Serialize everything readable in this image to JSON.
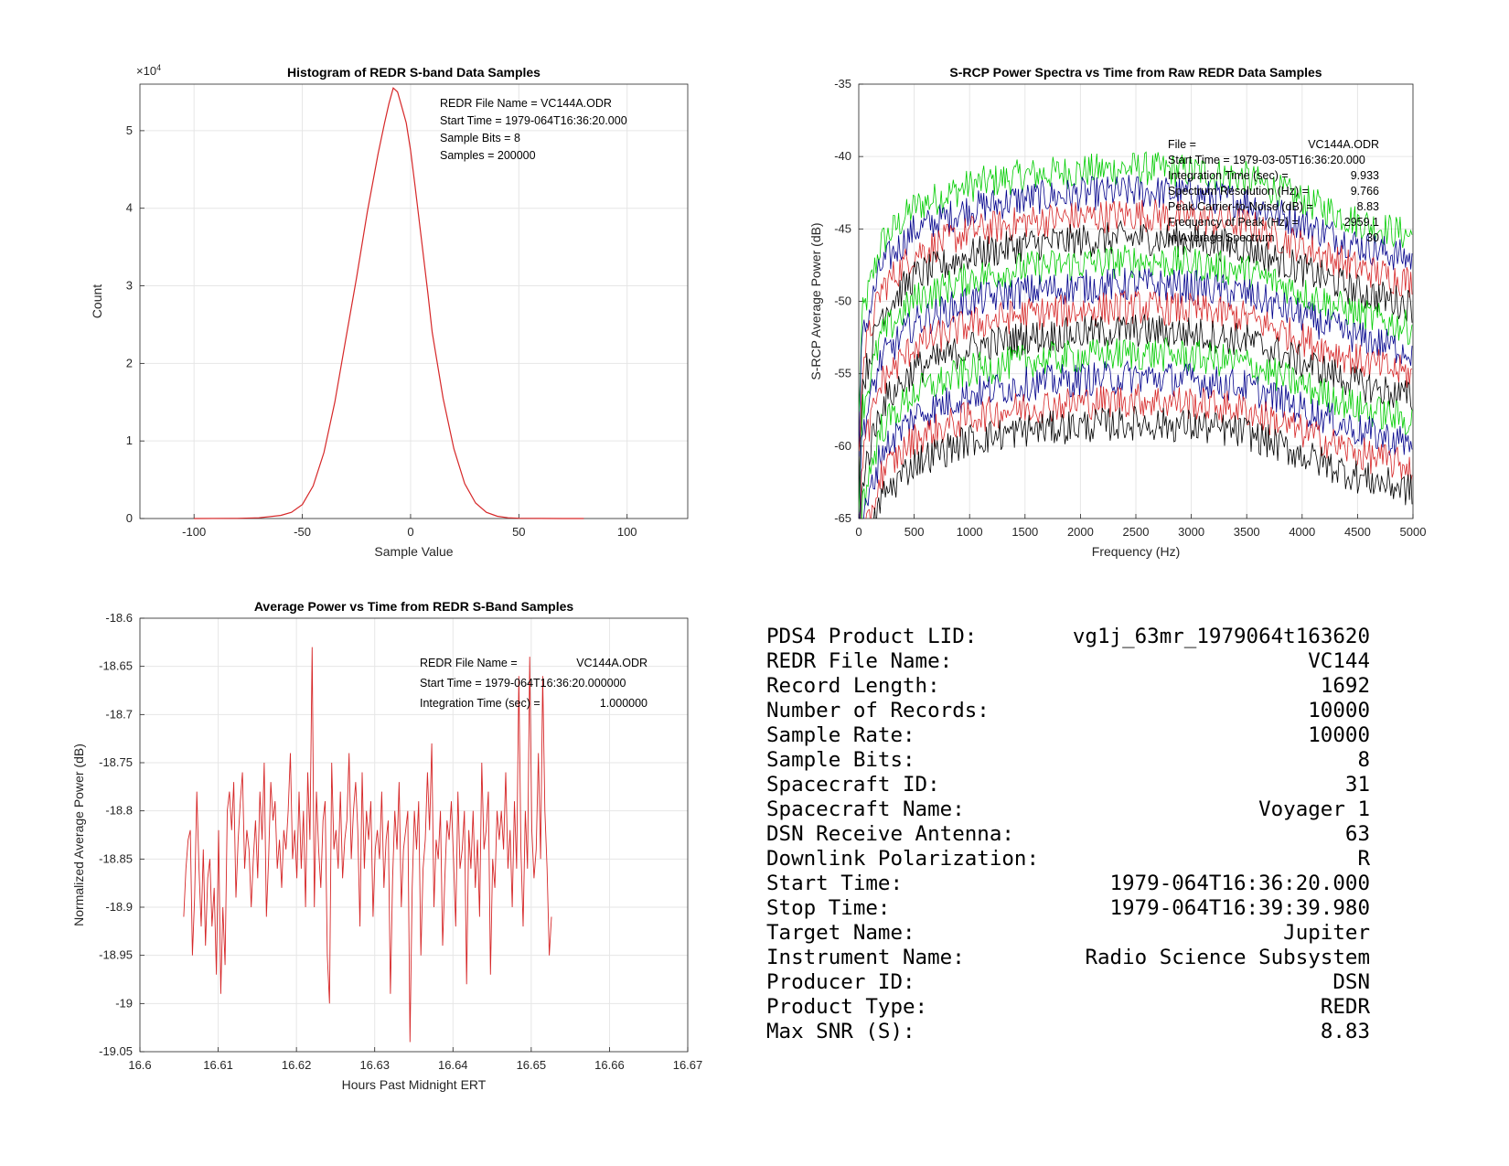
{
  "chart_data": [
    {
      "type": "line",
      "id": "histogram",
      "title": "Histogram of REDR S-band Data Samples",
      "xlabel": "Sample Value",
      "ylabel": "Count",
      "y_exponent_label": "×10",
      "y_exponent": "4",
      "xlim": [
        -125,
        128
      ],
      "ylim": [
        0,
        5.6
      ],
      "xticks": [
        -100,
        -50,
        0,
        50,
        100
      ],
      "yticks": [
        0,
        1,
        2,
        3,
        4,
        5
      ],
      "grid": true,
      "series_color": "#d62728",
      "x": [
        -100,
        -80,
        -70,
        -60,
        -55,
        -50,
        -45,
        -40,
        -35,
        -30,
        -25,
        -20,
        -15,
        -12,
        -10,
        -8,
        -6,
        -4,
        -2,
        0,
        2,
        5,
        8,
        10,
        15,
        20,
        25,
        30,
        35,
        40,
        45,
        50,
        60,
        70,
        80
      ],
      "y": [
        0,
        0.002,
        0.01,
        0.04,
        0.08,
        0.18,
        0.42,
        0.85,
        1.5,
        2.3,
        3.1,
        3.95,
        4.7,
        5.1,
        5.35,
        5.55,
        5.5,
        5.3,
        5.1,
        4.75,
        4.3,
        3.6,
        2.9,
        2.4,
        1.55,
        0.9,
        0.45,
        0.2,
        0.08,
        0.03,
        0.01,
        0.004,
        0.001,
        0,
        0
      ],
      "annotations": [
        "REDR File Name = VC144A.ODR",
        "Start Time = 1979-064T16:36:20.000",
        "Sample Bits = 8",
        "Samples = 200000"
      ]
    },
    {
      "type": "line",
      "id": "spectra",
      "title": "S-RCP Power Spectra vs Time from Raw REDR Data Samples",
      "xlabel": "Frequency (Hz)",
      "ylabel": "S-RCP Average Power (dB)",
      "xlim": [
        0,
        5000
      ],
      "ylim": [
        -65,
        -35
      ],
      "xticks": [
        0,
        500,
        1000,
        1500,
        2000,
        2500,
        3000,
        3500,
        4000,
        4500,
        5000
      ],
      "yticks": [
        -65,
        -60,
        -55,
        -50,
        -45,
        -40,
        -35
      ],
      "grid": true,
      "series_colors": [
        "#00cc00",
        "#00008b",
        "#d62728",
        "#000000"
      ],
      "series_offsets_db": [
        0,
        -1.6,
        -3.2,
        -4.8,
        -6.4,
        -8.0,
        -9.6,
        -11.2,
        -12.8,
        -14.4,
        -16.0,
        -17.6
      ],
      "envelope_x": [
        0,
        200,
        500,
        1000,
        1500,
        2000,
        2500,
        3000,
        3500,
        4000,
        4500,
        5000
      ],
      "envelope_y": [
        -52,
        -46,
        -43.5,
        -42,
        -41.3,
        -41,
        -40.8,
        -41,
        -41.5,
        -43,
        -44.5,
        -45.5
      ],
      "annotations": [
        {
          "label": "File =",
          "value": "VC144A.ODR"
        },
        {
          "label": "Start Time = 1979-03-05T16:36:20.000",
          "value": ""
        },
        {
          "label": "Integration Time (sec) =",
          "value": "9.933"
        },
        {
          "label": "Spectrum Resolution (Hz) =",
          "value": "9.766"
        },
        {
          "label": "Peak Carrier-to-Noise (dB) =",
          "value": "8.83"
        },
        {
          "label": "Frequency of Peak (Hz) =",
          "value": "2959.1"
        },
        {
          "label": "In Average Spectrum",
          "value": "30"
        }
      ]
    },
    {
      "type": "line",
      "id": "avgpower",
      "title": "Average Power vs Time from REDR S-Band Samples",
      "xlabel": "Hours Past Midnight ERT",
      "ylabel": "Normalized Average Power (dB)",
      "xlim": [
        16.6,
        16.67
      ],
      "ylim": [
        -19.05,
        -18.6
      ],
      "xticks": [
        "16.6",
        "16.61",
        "16.62",
        "16.63",
        "16.64",
        "16.65",
        "16.66",
        "16.67"
      ],
      "yticks": [
        "-19.05",
        "-19",
        "-18.95",
        "-18.9",
        "-18.85",
        "-18.8",
        "-18.75",
        "-18.7",
        "-18.65",
        "-18.6"
      ],
      "grid": true,
      "series_color": "#d62728",
      "x_start": 16.6056,
      "x_step": 0.000278,
      "y": [
        -18.91,
        -18.86,
        -18.83,
        -18.82,
        -18.95,
        -18.89,
        -18.78,
        -18.86,
        -18.92,
        -18.84,
        -18.94,
        -18.87,
        -18.85,
        -18.92,
        -18.88,
        -18.97,
        -18.82,
        -18.99,
        -18.9,
        -18.96,
        -18.8,
        -18.78,
        -18.82,
        -18.77,
        -18.89,
        -18.83,
        -18.79,
        -18.76,
        -18.86,
        -18.82,
        -18.84,
        -18.9,
        -18.85,
        -18.81,
        -18.87,
        -18.78,
        -18.83,
        -18.75,
        -18.91,
        -18.85,
        -18.77,
        -18.81,
        -18.79,
        -18.86,
        -18.83,
        -18.88,
        -18.82,
        -18.84,
        -18.8,
        -18.74,
        -18.85,
        -18.82,
        -18.87,
        -18.78,
        -18.86,
        -18.8,
        -18.9,
        -18.76,
        -18.83,
        -18.63,
        -18.9,
        -18.78,
        -18.84,
        -18.88,
        -18.81,
        -18.79,
        -18.95,
        -19.0,
        -18.75,
        -18.84,
        -18.82,
        -18.86,
        -18.78,
        -18.87,
        -18.83,
        -18.81,
        -18.74,
        -18.85,
        -18.8,
        -18.77,
        -18.82,
        -18.92,
        -18.76,
        -18.86,
        -18.8,
        -18.83,
        -18.79,
        -18.91,
        -18.84,
        -18.82,
        -18.85,
        -18.78,
        -18.88,
        -18.83,
        -18.81,
        -18.99,
        -18.87,
        -18.8,
        -18.84,
        -18.77,
        -18.9,
        -18.84,
        -18.82,
        -18.8,
        -19.04,
        -18.88,
        -18.8,
        -18.84,
        -18.79,
        -18.95,
        -18.86,
        -18.83,
        -18.76,
        -18.82,
        -18.73,
        -18.9,
        -18.83,
        -18.85,
        -18.8,
        -18.94,
        -18.87,
        -18.81,
        -18.83,
        -18.79,
        -18.85,
        -18.92,
        -18.78,
        -18.86,
        -18.84,
        -18.8,
        -18.98,
        -18.82,
        -18.86,
        -18.8,
        -18.88,
        -18.83,
        -18.91,
        -18.75,
        -18.84,
        -18.82,
        -18.78,
        -18.97,
        -18.85,
        -18.88,
        -18.8,
        -18.83,
        -18.8,
        -18.84,
        -18.76,
        -18.86,
        -18.82,
        -18.9,
        -18.79,
        -18.86,
        -18.66,
        -18.84,
        -18.92,
        -18.8,
        -18.86,
        -18.64,
        -18.82,
        -18.87,
        -18.84,
        -18.74,
        -18.85,
        -18.66,
        -18.8,
        -18.86,
        -18.95,
        -18.91
      ],
      "annotations": [
        {
          "label": "REDR File Name =",
          "value": "VC144A.ODR"
        },
        {
          "label": "Start Time = 1979-064T16:36:20.000000",
          "value": ""
        },
        {
          "label": "Integration Time (sec) =",
          "value": "1.000000"
        }
      ]
    }
  ],
  "info": [
    {
      "label": "PDS4 Product LID:",
      "value": "vg1j_63mr_1979064t163620"
    },
    {
      "label": "REDR File Name:",
      "value": "VC144"
    },
    {
      "label": "Record Length:",
      "value": "1692"
    },
    {
      "label": "Number of Records:",
      "value": "10000"
    },
    {
      "label": "Sample Rate:",
      "value": "10000"
    },
    {
      "label": "Sample Bits:",
      "value": "8"
    },
    {
      "label": "Spacecraft ID:",
      "value": "31"
    },
    {
      "label": "Spacecraft Name:",
      "value": "Voyager 1"
    },
    {
      "label": "DSN Receive Antenna:",
      "value": "63"
    },
    {
      "label": "Downlink Polarization:",
      "value": "R"
    },
    {
      "label": "Start Time:",
      "value": "1979-064T16:36:20.000"
    },
    {
      "label": "Stop Time:",
      "value": "1979-064T16:39:39.980"
    },
    {
      "label": "Target Name:",
      "value": "Jupiter"
    },
    {
      "label": "Instrument Name:",
      "value": "Radio Science Subsystem"
    },
    {
      "label": "Producer ID:",
      "value": "DSN"
    },
    {
      "label": "Product Type:",
      "value": "REDR"
    },
    {
      "label": "Max SNR (S):",
      "value": "8.83"
    }
  ]
}
